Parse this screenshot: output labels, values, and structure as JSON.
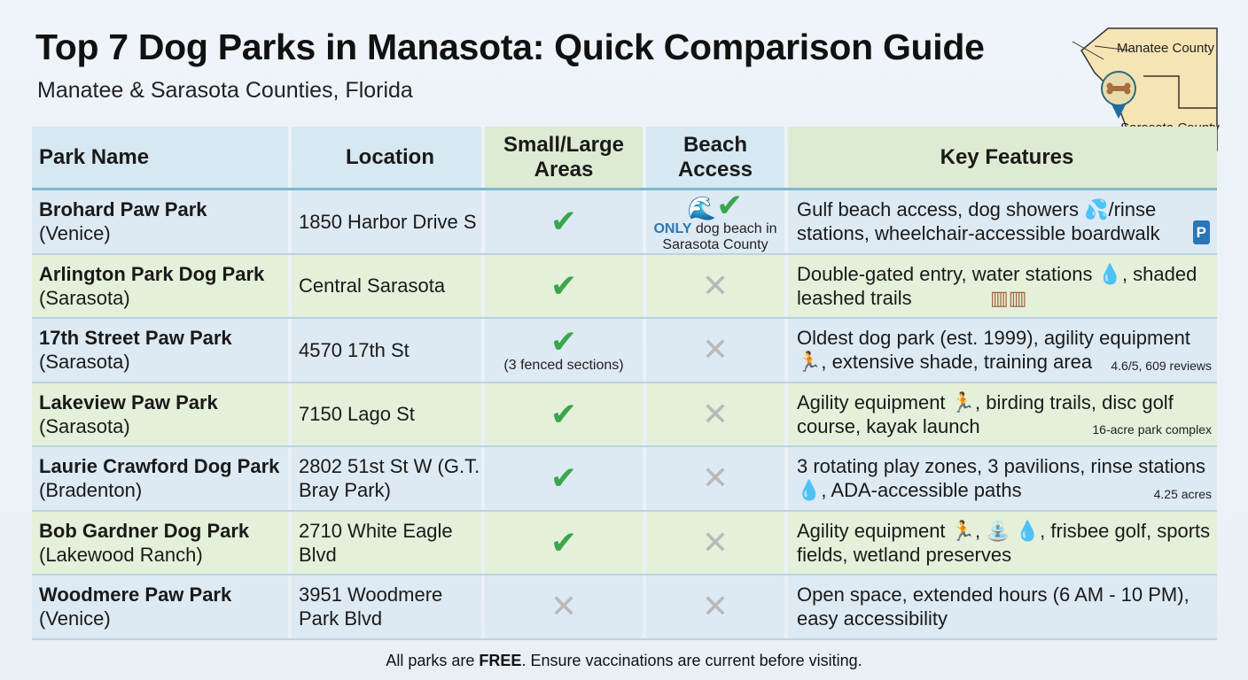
{
  "title": "Top 7 Dog Parks in Manasota: Quick Comparison Guide",
  "subtitle": "Manatee & Sarasota Counties, Florida",
  "map": {
    "labels": [
      "Manatee County",
      "Sarasota County"
    ],
    "icon": "bone-map-pin-icon"
  },
  "headers": [
    "Park Name",
    "Location",
    "Small/Large Areas",
    "Beach Access",
    "Key Features"
  ],
  "rows": [
    {
      "name": "Brohard Paw Park",
      "city": "(Venice)",
      "location": "1850 Harbor Drive S",
      "areas": true,
      "beach": true,
      "beach_note_bold": "ONLY",
      "beach_note": " dog beach in Sarasota County",
      "features": "Gulf beach access, dog showers 💦/rinse stations, wheelchair-accessible boardwalk",
      "extra": ""
    },
    {
      "name": "Arlington Park Dog Park",
      "city": "(Sarasota)",
      "location": "Central Sarasota",
      "areas": true,
      "beach": false,
      "features": "Double-gated entry, water stations 💧, shaded leashed trails",
      "extra": ""
    },
    {
      "name": "17th Street Paw Park",
      "city": "(Sarasota)",
      "location": "4570 17th St",
      "areas": true,
      "areas_note": "(3 fenced sections)",
      "beach": false,
      "features": "Oldest dog park (est. 1999), agility equipment 🏃, extensive shade, training area",
      "extra": "4.6/5, 609 reviews"
    },
    {
      "name": "Lakeview Paw Park",
      "city": "(Sarasota)",
      "location": "7150 Lago St",
      "areas": true,
      "beach": false,
      "features": "Agility equipment 🏃, birding trails, disc golf course, kayak launch",
      "extra": "16-acre park complex"
    },
    {
      "name": "Laurie Crawford Dog Park",
      "city": "(Bradenton)",
      "location": "2802 51st St W (G.T. Bray Park)",
      "areas": true,
      "beach": false,
      "features": "3 rotating play zones, 3 pavilions, rinse stations 💧, ADA-accessible paths",
      "extra": "4.25 acres"
    },
    {
      "name": "Bob Gardner Dog Park",
      "city": "(Lakewood Ranch)",
      "location": "2710 White Eagle Blvd",
      "areas": true,
      "beach": false,
      "features": "Agility equipment 🏃, ⛲ 💧, frisbee golf, sports fields, wetland preserves",
      "extra": ""
    },
    {
      "name": "Woodmere Paw Park",
      "city": "(Venice)",
      "location": "3951 Woodmere Park Blvd",
      "areas": false,
      "beach": false,
      "features": "Open space, extended hours (6 AM - 10 PM), easy accessibility",
      "extra": ""
    }
  ],
  "footer": {
    "pre": "All parks are ",
    "bold": "FREE",
    "post": ". Ensure vaccinations are current before visiting."
  },
  "colors": {
    "check": "#3aa64c",
    "cross": "#b9b9b9",
    "row_blue": "#dde9f3",
    "row_green": "#e4f0da"
  }
}
